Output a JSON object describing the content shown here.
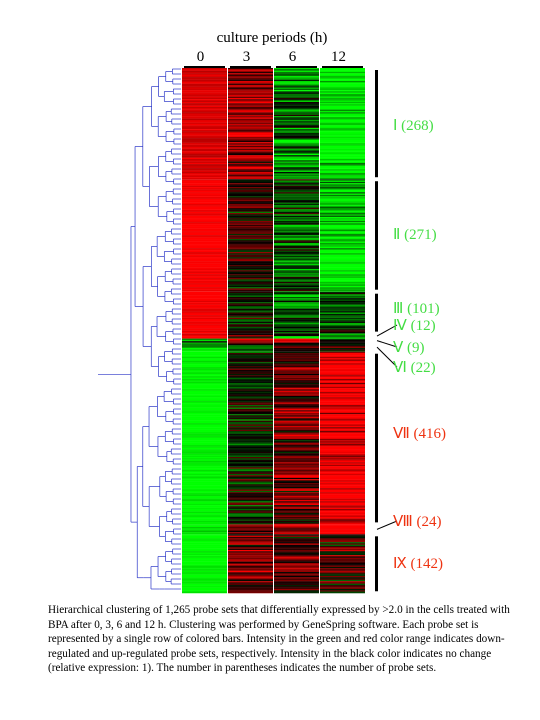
{
  "figure": {
    "header_title": "culture periods (h)",
    "columns": [
      "0",
      "3",
      "6",
      "12"
    ],
    "colors": {
      "up": "#ff0000",
      "down": "#00ff00",
      "none": "#000000",
      "dendrogram": "#2a35c8",
      "cluster_label_down": "#44dd44",
      "cluster_label_up": "#ee3311"
    },
    "clusters": [
      {
        "id": "I",
        "text": "Ⅰ (268)",
        "count": 268,
        "label_color": "green",
        "pattern": [
          0.85,
          0.55,
          -0.45,
          -0.95
        ]
      },
      {
        "id": "II",
        "text": "Ⅱ (271)",
        "count": 271,
        "label_color": "green",
        "pattern": [
          1.0,
          0.15,
          -0.3,
          -0.85
        ]
      },
      {
        "id": "III",
        "text": "Ⅲ (101)",
        "count": 101,
        "label_color": "green",
        "pattern": [
          1.0,
          -0.1,
          -0.35,
          -0.25
        ]
      },
      {
        "id": "IV",
        "text": "Ⅳ (12)",
        "count": 12,
        "label_color": "green",
        "pattern": [
          0.9,
          0.2,
          -0.5,
          -0.6
        ]
      },
      {
        "id": "V",
        "text": "Ⅴ (9)",
        "count": 9,
        "label_color": "green",
        "pattern": [
          -0.4,
          1.0,
          0.8,
          -0.3
        ]
      },
      {
        "id": "VI",
        "text": "Ⅵ (22)",
        "count": 22,
        "label_color": "green",
        "pattern": [
          -0.7,
          -0.2,
          0.3,
          0.2
        ]
      },
      {
        "id": "VII",
        "text": "Ⅶ (416)",
        "count": 416,
        "label_color": "red",
        "pattern": [
          -1.0,
          -0.05,
          0.4,
          1.0
        ]
      },
      {
        "id": "VIII",
        "text": "Ⅷ (24)",
        "count": 24,
        "label_color": "red",
        "pattern": [
          -0.9,
          0.3,
          0.6,
          1.0
        ]
      },
      {
        "id": "IX",
        "text": "Ⅸ (142)",
        "count": 142,
        "label_color": "red",
        "pattern": [
          -1.0,
          0.45,
          0.3,
          0.2
        ]
      }
    ]
  },
  "caption": "Hierarchical clustering of 1,265 probe sets that differentially expressed by >2.0 in the cells treated with BPA after 0, 3, 6 and 12 h. Clustering was performed by GeneSpring software. Each probe set is represented by a single row of colored bars. Intensity in the green and red color range indicates down-regulated and up-regulated probe sets, respectively. Intensity in the black color indicates no change (relative expression: 1). The number in parentheses indicates the number of probe sets."
}
